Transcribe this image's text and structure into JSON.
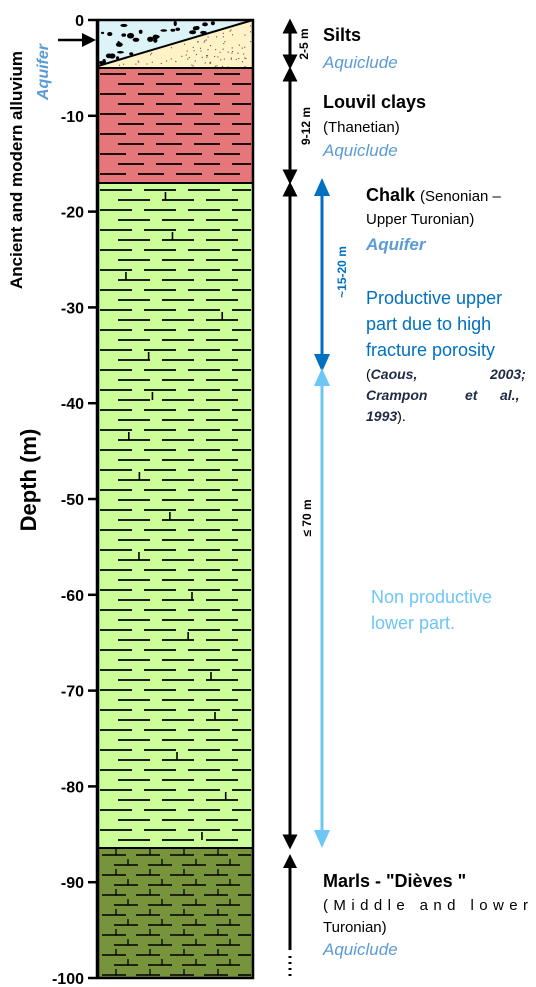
{
  "axis": {
    "label": "Depth (m)",
    "ticks": [
      "0",
      "-10",
      "-20",
      "-30",
      "-40",
      "-50",
      "-60",
      "-70",
      "-80",
      "-90",
      "-100"
    ]
  },
  "alluvium_label": "Ancient and modern alluvium",
  "alluvium_aquifer": "Aquifer",
  "layers": [
    {
      "name": "Silts",
      "thickness": "2-5 m",
      "role": "Aquiclude",
      "top": 0,
      "bottom": 5,
      "color": "#fff2c6"
    },
    {
      "name": "Louvil clays",
      "age": "(Thanetian)",
      "thickness": "9-12 m",
      "role": "Aquiclude",
      "top": 5,
      "bottom": 17,
      "color": "#e5777a"
    },
    {
      "name": "Chalk",
      "age": "(Senonian –",
      "age2": "Upper Turonian)",
      "thickness": "≤ 70 m",
      "role": "Aquifer",
      "top": 17,
      "bottom": 87,
      "color": "#ccff99"
    },
    {
      "name": "Marls - \"Dièves \"",
      "age": "(Middle and lower",
      "age2": "Turonian)",
      "role": "Aquiclude",
      "top": 87,
      "bottom": 100,
      "color": "#77933c"
    }
  ],
  "alluvium_color": "#dcf3f8",
  "aquifer_color": "#5b9bd5",
  "productive": {
    "thickness": "~15-20 m",
    "line1": "Productive upper",
    "line2": "part due to  high",
    "line3": "fracture porosity",
    "ref1": "Caous,",
    "ref1_year": "2003;",
    "ref2": "Crampon",
    "ref2_et": "et",
    "ref2_al": "al.,",
    "ref3": "1993",
    "color": "#0070c0"
  },
  "non_productive": {
    "line1": "Non productive",
    "line2": "lower part.",
    "color": "#6dc6f4"
  }
}
